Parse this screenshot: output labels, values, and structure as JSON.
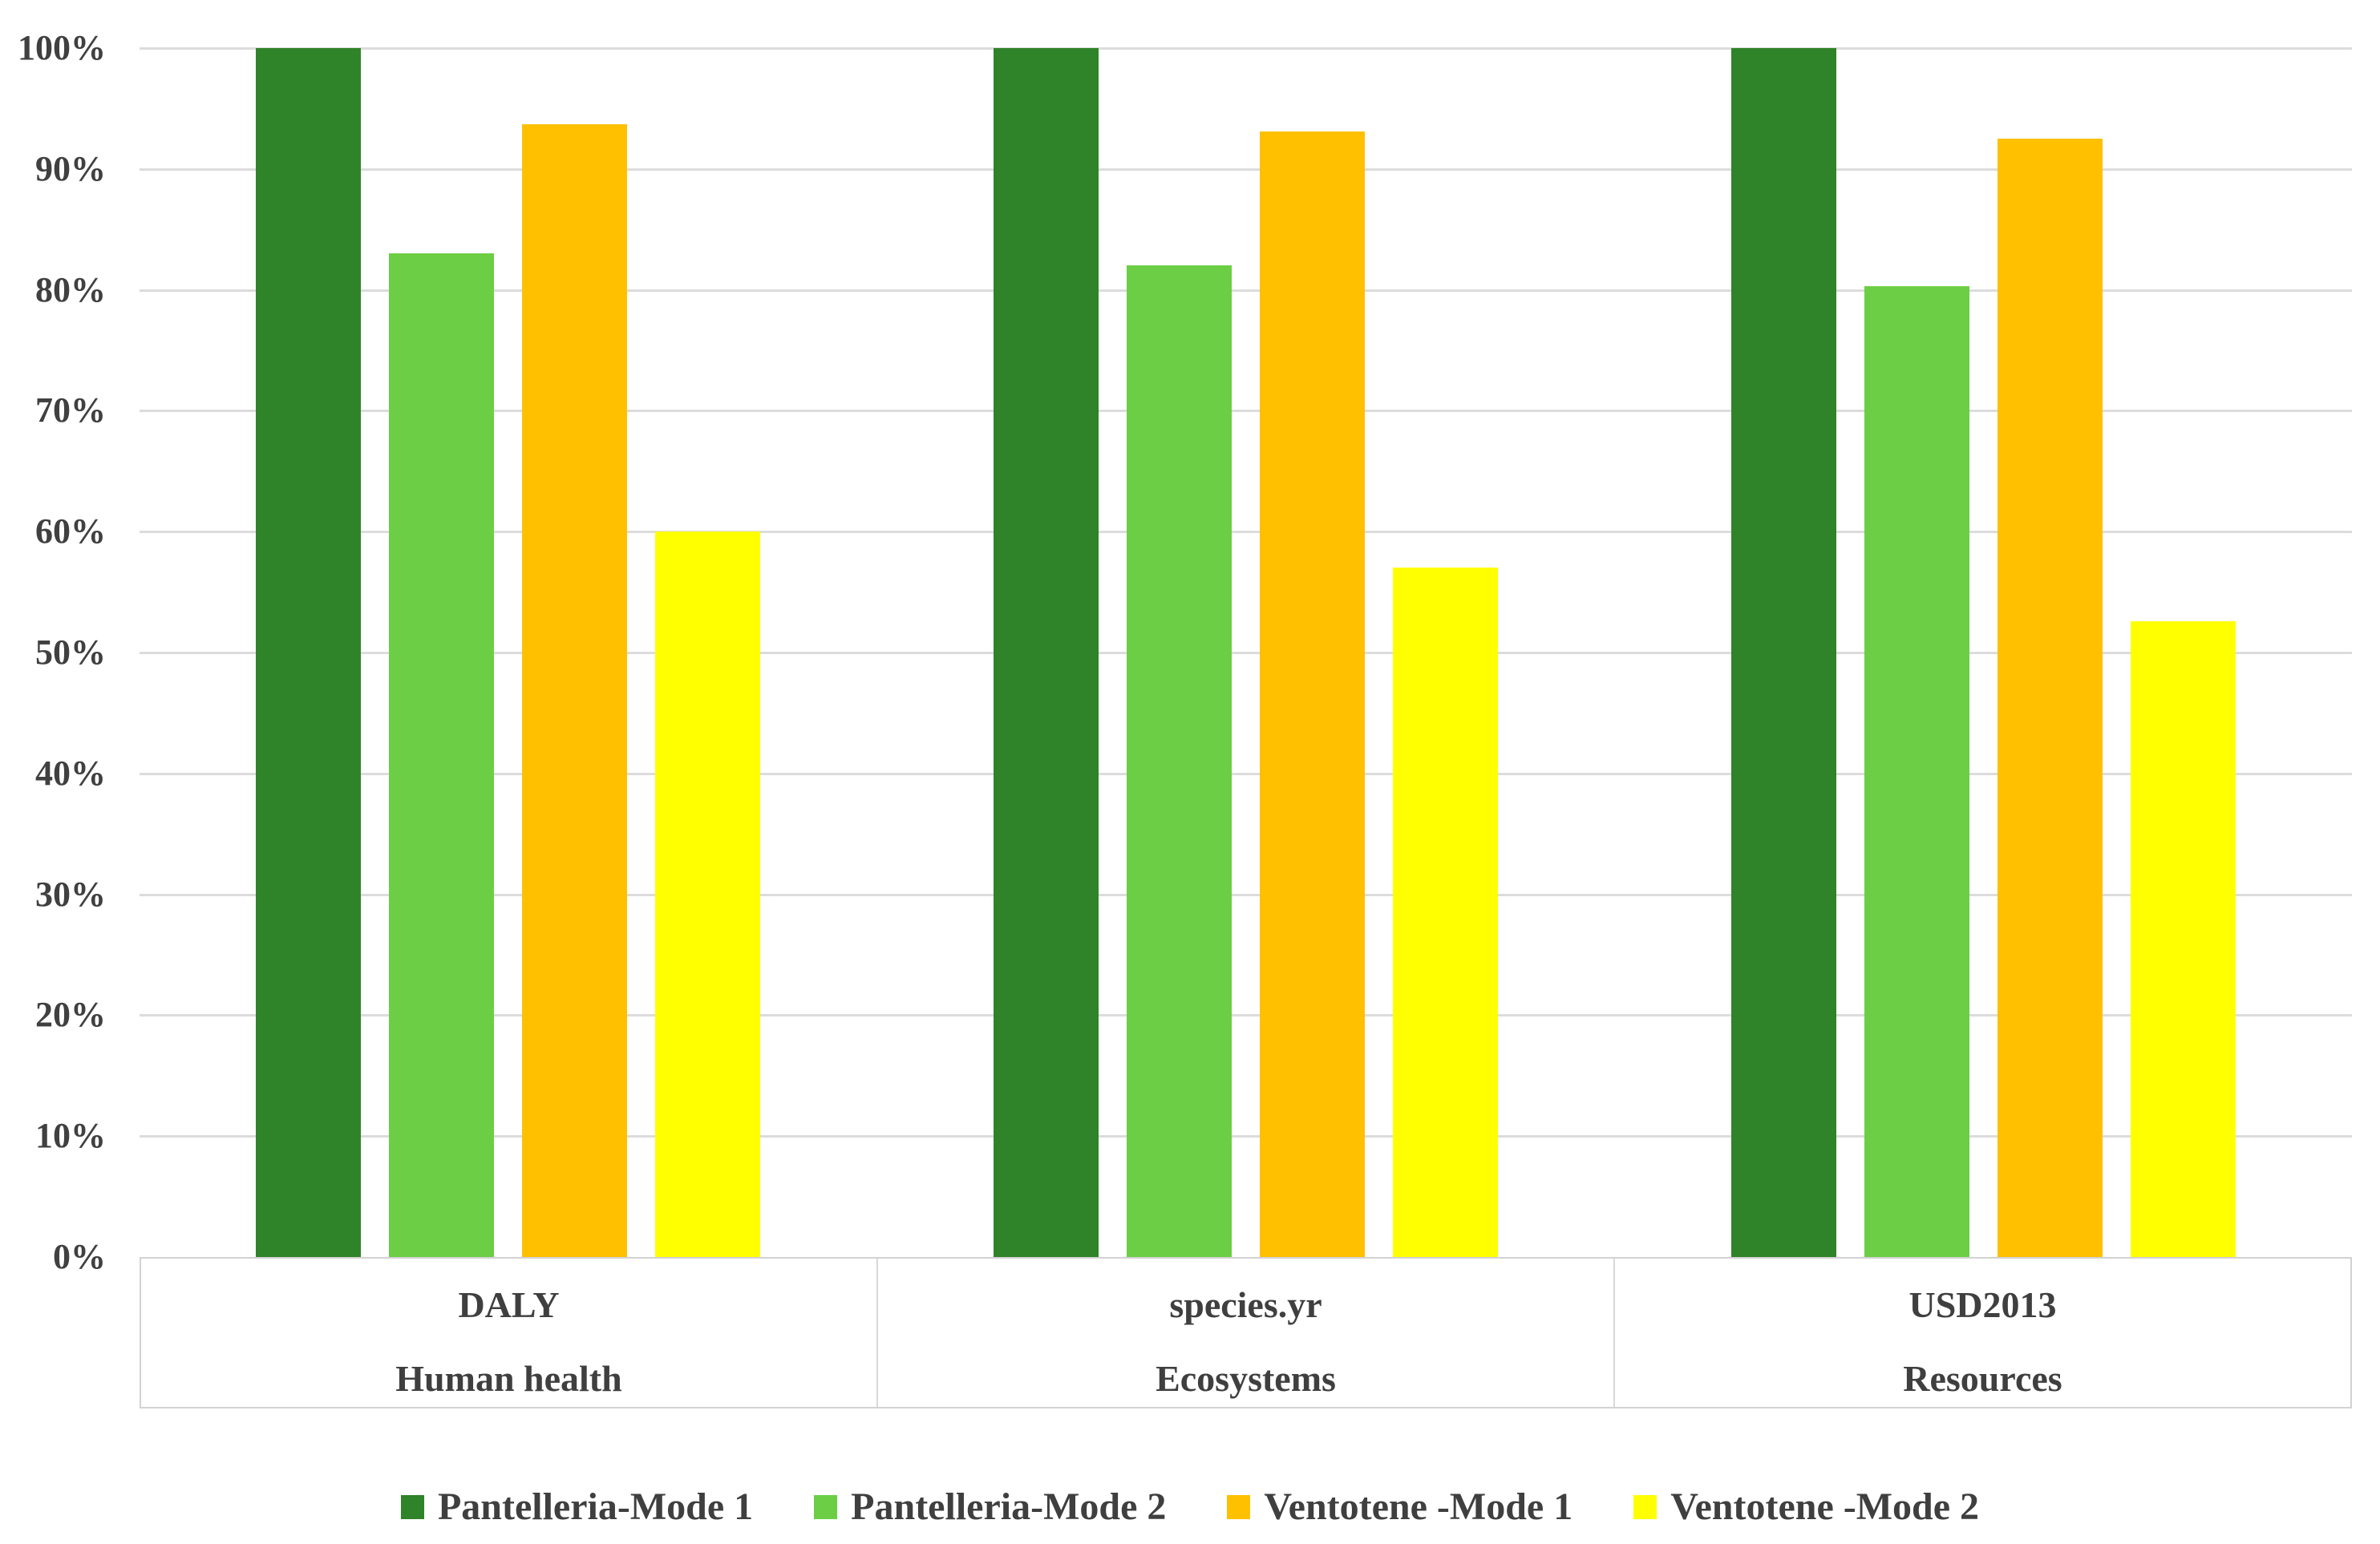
{
  "chart_data": {
    "type": "bar",
    "title": "",
    "y_axis": {
      "tick_labels": [
        "100%",
        "90%",
        "80%",
        "70%",
        "60%",
        "50%",
        "40%",
        "30%",
        "20%",
        "10%",
        "0%"
      ],
      "ylim": [
        0,
        100
      ],
      "tick_step": 10,
      "grid": true
    },
    "categories": [
      {
        "unit": "DALY",
        "group": "Human health"
      },
      {
        "unit": "species.yr",
        "group": "Ecosystems"
      },
      {
        "unit": "USD2013",
        "group": "Resources"
      }
    ],
    "series": [
      {
        "name": "Pantelleria-Mode 1",
        "color": "#2F8328",
        "values": [
          100,
          100,
          100
        ]
      },
      {
        "name": "Pantelleria-Mode 2",
        "color": "#6CCE44",
        "values": [
          83,
          82,
          80.3
        ]
      },
      {
        "name": "Ventotene -Mode 1",
        "color": "#FFC000",
        "values": [
          93.7,
          93.1,
          92.5
        ]
      },
      {
        "name": "Ventotene -Mode 2",
        "color": "#FFFF00",
        "values": [
          60,
          57,
          52.6
        ]
      }
    ],
    "legend_position": "bottom",
    "colors": {
      "gridline": "#DCDCDC",
      "axis_box_border": "#D2D2D2",
      "text": "#3F3F3F"
    }
  }
}
